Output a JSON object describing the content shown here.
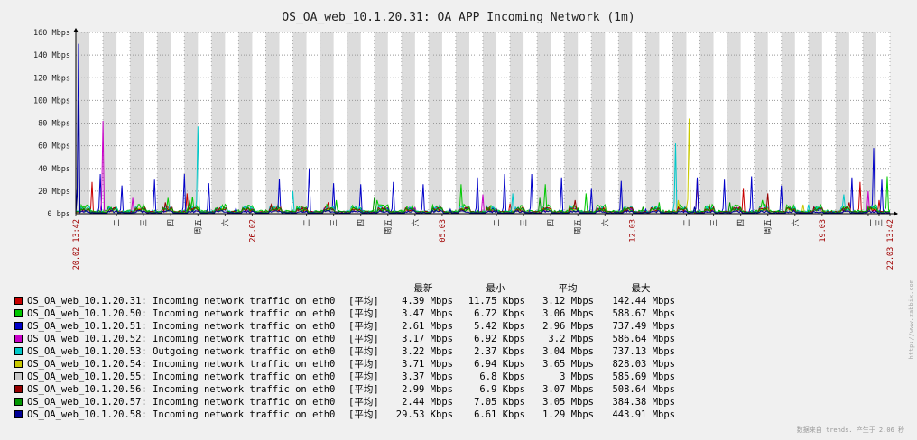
{
  "chart_data": {
    "type": "line",
    "title": "OS_OA_web_10.1.20.31: OA APP Incoming Network (1m)",
    "y_unit": "bps",
    "ylim": [
      0,
      160
    ],
    "y_ticks": [
      {
        "value": 0,
        "label": "0 bps"
      },
      {
        "value": 20,
        "label": "20 Mbps"
      },
      {
        "value": 40,
        "label": "40 Mbps"
      },
      {
        "value": 60,
        "label": "60 Mbps"
      },
      {
        "value": 80,
        "label": "80 Mbps"
      },
      {
        "value": 100,
        "label": "100 Mbps"
      },
      {
        "value": 120,
        "label": "120 Mbps"
      },
      {
        "value": 140,
        "label": "140 Mbps"
      },
      {
        "value": 160,
        "label": "160 Mbps"
      }
    ],
    "x_range_days": [
      0,
      30
    ],
    "x_labels": [
      {
        "day": 0,
        "label": "20.02 13:42",
        "highlight": true
      },
      {
        "day": 1.5,
        "label": "二"
      },
      {
        "day": 2.5,
        "label": "三"
      },
      {
        "day": 3.5,
        "label": "四"
      },
      {
        "day": 4.5,
        "label": "周五"
      },
      {
        "day": 5.5,
        "label": "六"
      },
      {
        "day": 6.5,
        "label": "26.02",
        "highlight": true
      },
      {
        "day": 8.5,
        "label": "二"
      },
      {
        "day": 9.5,
        "label": "三"
      },
      {
        "day": 10.5,
        "label": "四"
      },
      {
        "day": 11.5,
        "label": "周五"
      },
      {
        "day": 12.5,
        "label": "六"
      },
      {
        "day": 13.5,
        "label": "05.03",
        "highlight": true
      },
      {
        "day": 15.5,
        "label": "二"
      },
      {
        "day": 16.5,
        "label": "三"
      },
      {
        "day": 17.5,
        "label": "四"
      },
      {
        "day": 18.5,
        "label": "周五"
      },
      {
        "day": 19.5,
        "label": "六"
      },
      {
        "day": 20.5,
        "label": "12.03",
        "highlight": true
      },
      {
        "day": 22.5,
        "label": "二"
      },
      {
        "day": 23.5,
        "label": "三"
      },
      {
        "day": 24.5,
        "label": "四"
      },
      {
        "day": 25.5,
        "label": "周五"
      },
      {
        "day": 26.5,
        "label": "六"
      },
      {
        "day": 27.5,
        "label": "19.03",
        "highlight": true
      },
      {
        "day": 29.2,
        "label": "二"
      },
      {
        "day": 29.6,
        "label": "三"
      },
      {
        "day": 30,
        "label": "22.03 13:42",
        "highlight": true
      }
    ],
    "series": [
      {
        "name": "OS_OA_web_10.1.20.31: Incoming network traffic on eth0",
        "color": "#c80000",
        "func": "[平均]",
        "last": "4.39 Mbps",
        "min": "11.75 Kbps",
        "avg": "3.12 Mbps",
        "max": "142.44 Mbps",
        "base": 2.5,
        "spikes": [
          [
            0.6,
            28
          ],
          [
            4.1,
            18
          ],
          [
            9.3,
            10
          ],
          [
            16.0,
            9
          ],
          [
            22.9,
            30
          ],
          [
            24.6,
            22
          ],
          [
            28.9,
            28
          ],
          [
            29.6,
            12
          ]
        ]
      },
      {
        "name": "OS_OA_web_10.1.20.50: Incoming network traffic on eth0",
        "color": "#00c800",
        "func": "[平均]",
        "last": "3.47 Mbps",
        "min": "6.72 Kbps",
        "avg": "3.06 Mbps",
        "max": "588.67 Mbps",
        "base": 3.5,
        "spikes": [
          [
            3.4,
            14
          ],
          [
            4.3,
            15
          ],
          [
            9.6,
            12
          ],
          [
            11.1,
            12
          ],
          [
            14.2,
            26
          ],
          [
            17.3,
            26
          ],
          [
            18.8,
            18
          ],
          [
            21.5,
            10
          ],
          [
            25.3,
            12
          ],
          [
            29.9,
            33
          ]
        ]
      },
      {
        "name": "OS_OA_web_10.1.20.51: Incoming network traffic on eth0",
        "color": "#0000c8",
        "func": "[平均]",
        "last": "2.61 Mbps",
        "min": "5.42 Kbps",
        "avg": "2.96 Mbps",
        "max": "737.49 Mbps",
        "base": 2.0,
        "spikes": [
          [
            0.1,
            150
          ],
          [
            0.9,
            35
          ],
          [
            1.7,
            25
          ],
          [
            2.9,
            30
          ],
          [
            4.0,
            35
          ],
          [
            4.9,
            27
          ],
          [
            5.9,
            5
          ],
          [
            7.5,
            31
          ],
          [
            8.6,
            40
          ],
          [
            9.5,
            27
          ],
          [
            10.5,
            26
          ],
          [
            11.7,
            28
          ],
          [
            12.8,
            26
          ],
          [
            14.8,
            32
          ],
          [
            15.8,
            35
          ],
          [
            16.8,
            35
          ],
          [
            17.9,
            32
          ],
          [
            19.0,
            22
          ],
          [
            20.1,
            29
          ],
          [
            21.0,
            4
          ],
          [
            22.9,
            32
          ],
          [
            23.9,
            30
          ],
          [
            24.9,
            33
          ],
          [
            26.0,
            25
          ],
          [
            27.2,
            6
          ],
          [
            28.6,
            32
          ],
          [
            29.4,
            58
          ],
          [
            29.7,
            30
          ]
        ]
      },
      {
        "name": "OS_OA_web_10.1.20.52: Incoming network traffic on eth0",
        "color": "#c800c8",
        "func": "[平均]",
        "last": "3.17 Mbps",
        "min": "6.92 Kbps",
        "avg": "3.2 Mbps",
        "max": "586.64 Mbps",
        "base": 2.2,
        "spikes": [
          [
            1.0,
            82
          ],
          [
            2.1,
            14
          ],
          [
            15.0,
            17
          ],
          [
            29.2,
            20
          ]
        ]
      },
      {
        "name": "OS_OA_web_10.1.20.53: Outgoing network traffic on eth0",
        "color": "#00c8c8",
        "func": "[平均]",
        "last": "3.22 Mbps",
        "min": "2.37 Kbps",
        "avg": "3.04 Mbps",
        "max": "737.13 Mbps",
        "base": 2.8,
        "spikes": [
          [
            4.5,
            77
          ],
          [
            8.0,
            20
          ],
          [
            16.1,
            18
          ],
          [
            22.1,
            62
          ],
          [
            27.0,
            8
          ],
          [
            28.3,
            17
          ]
        ]
      },
      {
        "name": "OS_OA_web_10.1.20.54: Incoming network traffic on eth0",
        "color": "#c8c800",
        "func": "[平均]",
        "last": "3.71 Mbps",
        "min": "6.94 Kbps",
        "avg": "3.65 Mbps",
        "max": "828.03 Mbps",
        "base": 2.0,
        "spikes": [
          [
            22.6,
            84
          ],
          [
            22.2,
            12
          ],
          [
            26.8,
            8
          ]
        ]
      },
      {
        "name": "OS_OA_web_10.1.20.55: Incoming network traffic on eth0",
        "color": "#c8c8c8",
        "func": "[平均]",
        "last": "3.37 Mbps",
        "min": "6.8 Kbps",
        "avg": "3 Mbps",
        "max": "585.69 Mbps",
        "base": 1.5,
        "spikes": [
          [
            5.5,
            6
          ],
          [
            20.3,
            6
          ]
        ]
      },
      {
        "name": "OS_OA_web_10.1.20.56: Incoming network traffic on eth0",
        "color": "#960000",
        "func": "[平均]",
        "last": "2.99 Mbps",
        "min": "6.9 Kbps",
        "avg": "3.07 Mbps",
        "max": "508.64 Mbps",
        "base": 2.4,
        "spikes": [
          [
            3.3,
            10
          ],
          [
            7.2,
            8
          ],
          [
            18.4,
            12
          ],
          [
            25.5,
            18
          ],
          [
            28.5,
            10
          ]
        ]
      },
      {
        "name": "OS_OA_web_10.1.20.57: Incoming network traffic on eth0",
        "color": "#009600",
        "func": "[平均]",
        "last": "2.44 Mbps",
        "min": "7.05 Kbps",
        "avg": "3.05 Mbps",
        "max": "384.38 Mbps",
        "base": 2.3,
        "spikes": [
          [
            4.2,
            12
          ],
          [
            11.0,
            14
          ],
          [
            17.1,
            14
          ],
          [
            20.9,
            6
          ],
          [
            24.1,
            10
          ]
        ]
      },
      {
        "name": "OS_OA_web_10.1.20.58: Incoming network traffic on eth0",
        "color": "#000096",
        "func": "[平均]",
        "last": "29.53 Kbps",
        "min": "6.61 Kbps",
        "avg": "1.29 Mbps",
        "max": "443.91 Mbps",
        "base": 1.2,
        "spikes": [
          [
            0.1,
            100
          ],
          [
            13.8,
            4
          ],
          [
            22.8,
            6
          ]
        ]
      }
    ],
    "legend_headers": {
      "last": "最新",
      "min": "最小",
      "avg": "平均",
      "max": "最大"
    },
    "grid": true,
    "legend_position": "bottom-left"
  },
  "footer_text": "数据来自 trends. 产生于 2.06 秒",
  "side_text": "http://www.zabbix.com"
}
